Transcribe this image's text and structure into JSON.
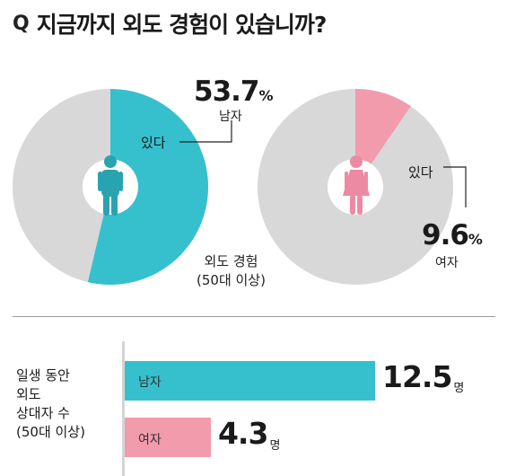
{
  "header": {
    "q_icon": "Q",
    "title": "지금까지 외도 경험이 있습니까?"
  },
  "colors": {
    "teal": "#36c0cd",
    "pink": "#f19bad",
    "gray": "#d8d8d8",
    "male_icon": "#2aa3b1",
    "female_icon": "#ec8aa4"
  },
  "chart_data": [
    {
      "type": "pie",
      "title": "",
      "slices": [
        {
          "label": "있다",
          "value": 53.7
        },
        {
          "label": "",
          "value": 46.3
        }
      ],
      "group_label": "남자",
      "value_text": "53.7",
      "unit": "%",
      "icon": "male-figure-icon"
    },
    {
      "type": "pie",
      "title": "",
      "slices": [
        {
          "label": "있다",
          "value": 9.6
        },
        {
          "label": "",
          "value": 90.4
        }
      ],
      "group_label": "여자",
      "value_text": "9.6",
      "unit": "%",
      "icon": "female-figure-icon"
    },
    {
      "type": "bar",
      "orientation": "horizontal",
      "categories": [
        "남자",
        "여자"
      ],
      "values": [
        12.5,
        4.3
      ],
      "value_texts": [
        "12.5",
        "4.3"
      ],
      "unit": "명",
      "ylabel": "일생 동안 외도 상대자 수 (50대 이상)"
    }
  ],
  "pie_note": {
    "line1": "외도 경험",
    "line2": "(50대 이상)"
  },
  "bar_side_label": {
    "line1": "일생 동안",
    "line2": "외도",
    "line3": "상대자 수",
    "line4": "(50대 이상)"
  }
}
